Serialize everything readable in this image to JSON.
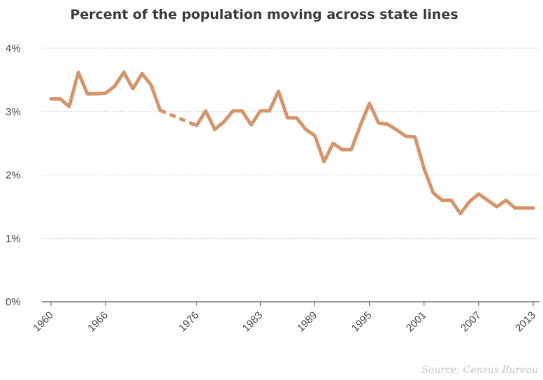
{
  "chart_data": {
    "type": "line",
    "title": "Percent of the population moving across state lines",
    "xlabel": "",
    "ylabel": "",
    "xlim": [
      1960,
      2013
    ],
    "ylim": [
      0,
      4
    ],
    "y_ticks": [
      0,
      1,
      2,
      3,
      4
    ],
    "y_tick_labels": [
      "0%",
      "1%",
      "2%",
      "3%",
      "4%"
    ],
    "x_ticks": [
      1960,
      1966,
      1976,
      1983,
      1989,
      1995,
      2001,
      2007,
      2013
    ],
    "x_tick_labels": [
      "1960",
      "1966",
      "1976",
      "1983",
      "1989",
      "1995",
      "2001",
      "2007",
      "2013"
    ],
    "grid": "horizontal",
    "line_color": "#d4956b",
    "source": "Source: Census Bureau",
    "series": [
      {
        "style": "solid",
        "x": [
          1960,
          1961,
          1962,
          1963,
          1964,
          1965,
          1966,
          1967,
          1968,
          1969,
          1970,
          1971,
          1972
        ],
        "y": [
          3.2,
          3.2,
          3.08,
          3.62,
          3.28,
          3.28,
          3.29,
          3.4,
          3.62,
          3.36,
          3.6,
          3.42,
          3.02
        ]
      },
      {
        "style": "dashed",
        "x": [
          1972,
          1976
        ],
        "y": [
          3.02,
          2.78
        ]
      },
      {
        "style": "solid",
        "x": [
          1976,
          1977,
          1978,
          1979,
          1980,
          1981,
          1982,
          1983,
          1984,
          1985,
          1986,
          1987,
          1988,
          1989,
          1990,
          1991,
          1992,
          1993,
          1994,
          1995,
          1996,
          1997,
          1998,
          1999,
          2000,
          2001,
          2002,
          2003,
          2004,
          2005,
          2006,
          2007,
          2008,
          2009,
          2010,
          2011,
          2012,
          2013
        ],
        "y": [
          2.78,
          3.01,
          2.72,
          2.84,
          3.01,
          3.01,
          2.79,
          3.01,
          3.01,
          3.32,
          2.9,
          2.9,
          2.72,
          2.62,
          2.21,
          2.5,
          2.4,
          2.4,
          2.78,
          3.13,
          2.82,
          2.8,
          2.71,
          2.61,
          2.6,
          2.1,
          1.72,
          1.6,
          1.6,
          1.39,
          1.58,
          1.7,
          1.6,
          1.5,
          1.6,
          1.48,
          1.48,
          1.48
        ]
      }
    ]
  }
}
